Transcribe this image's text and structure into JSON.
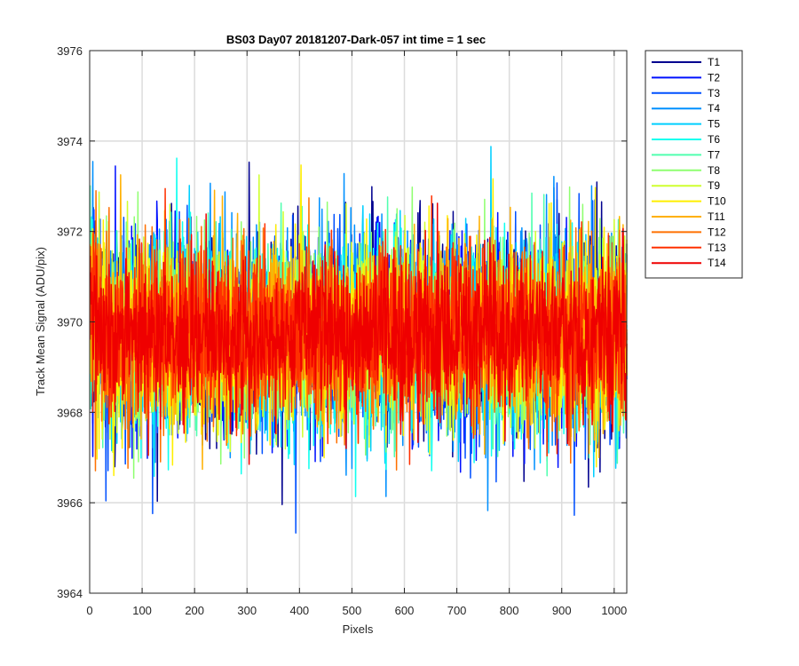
{
  "chart_data": {
    "type": "line",
    "title": "BS03 Day07 20181207-Dark-057 int time = 1 sec",
    "xlabel": "Pixels",
    "ylabel": "Track Mean Signal (ADU/pix)",
    "xlim": [
      0,
      1024
    ],
    "ylim": [
      3964,
      3976
    ],
    "xticks": [
      0,
      100,
      200,
      300,
      400,
      500,
      600,
      700,
      800,
      900,
      1000
    ],
    "yticks": [
      3964,
      3966,
      3968,
      3970,
      3972,
      3974,
      3976
    ],
    "grid": true,
    "legend_position": "outside-top-right",
    "baseline": 3969.7,
    "x_start": 1,
    "x_end": 1024,
    "series": [
      {
        "name": "T1",
        "color": "#00008f",
        "amplitude": 1.15
      },
      {
        "name": "T2",
        "color": "#0010ff",
        "amplitude": 1.12
      },
      {
        "name": "T3",
        "color": "#0050ff",
        "amplitude": 1.1
      },
      {
        "name": "T4",
        "color": "#0090ff",
        "amplitude": 1.08
      },
      {
        "name": "T5",
        "color": "#00cfff",
        "amplitude": 1.05
      },
      {
        "name": "T6",
        "color": "#10ffef",
        "amplitude": 1.03
      },
      {
        "name": "T7",
        "color": "#50ffaf",
        "amplitude": 1.0
      },
      {
        "name": "T8",
        "color": "#8fff70",
        "amplitude": 1.0
      },
      {
        "name": "T9",
        "color": "#cfff30",
        "amplitude": 1.02
      },
      {
        "name": "T10",
        "color": "#ffef00",
        "amplitude": 1.03
      },
      {
        "name": "T11",
        "color": "#ffb000",
        "amplitude": 1.0
      },
      {
        "name": "T12",
        "color": "#ff7000",
        "amplitude": 0.98
      },
      {
        "name": "T13",
        "color": "#ff3000",
        "amplitude": 0.95
      },
      {
        "name": "T14",
        "color": "#ef0000",
        "amplitude": 0.88
      }
    ]
  }
}
